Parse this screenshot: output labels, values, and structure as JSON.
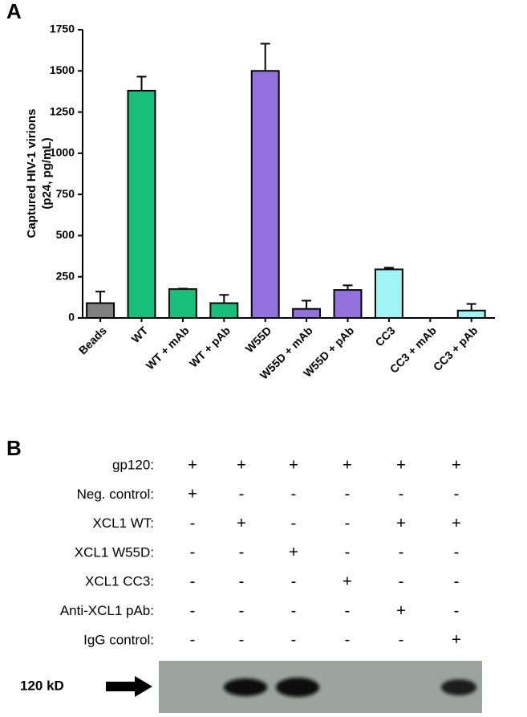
{
  "panel_labels": [
    "A",
    "B"
  ],
  "chart_data": {
    "type": "bar",
    "ylabel": [
      "Captured HIV-1 virions",
      "(p24, pg/mL)"
    ],
    "categories": [
      "Beads",
      "WT",
      "WT + mAb",
      "WT + pAb",
      "W55D",
      "W55D + mAb",
      "W55D + pAb",
      "CC3",
      "CC3 + mAb",
      "CC3 + pAb"
    ],
    "values": [
      90,
      1380,
      175,
      90,
      1500,
      55,
      170,
      295,
      0,
      45
    ],
    "errors": [
      70,
      85,
      3,
      50,
      165,
      50,
      28,
      10,
      0,
      40
    ],
    "colors": [
      "#808080",
      "#17bf7a",
      "#17bf7a",
      "#17bf7a",
      "#9370db",
      "#9370db",
      "#9370db",
      "#9ff5f5",
      "#9ff5f5",
      "#9ff5f5"
    ],
    "ylim": [
      0,
      1750
    ],
    "yticks": [
      0,
      250,
      500,
      750,
      1000,
      1250,
      1500,
      1750
    ]
  },
  "panel_b": {
    "row_labels": [
      "gp120:",
      "Neg. control:",
      "XCL1 WT:",
      "XCL1 W55D:",
      "XCL1 CC3:",
      "Anti-XCL1 pAb:",
      "IgG control:"
    ],
    "rows": [
      [
        "+",
        "+",
        "+",
        "+",
        "+",
        "+"
      ],
      [
        "+",
        "-",
        "-",
        "-",
        "-",
        "-"
      ],
      [
        "-",
        "+",
        "-",
        "-",
        "+",
        "+"
      ],
      [
        "-",
        "-",
        "+",
        "-",
        "-",
        "-"
      ],
      [
        "-",
        "-",
        "-",
        "+",
        "-",
        "-"
      ],
      [
        "-",
        "-",
        "-",
        "-",
        "+",
        "-"
      ],
      [
        "-",
        "-",
        "-",
        "-",
        "-",
        "+"
      ]
    ],
    "marker_label": "120 kD"
  }
}
